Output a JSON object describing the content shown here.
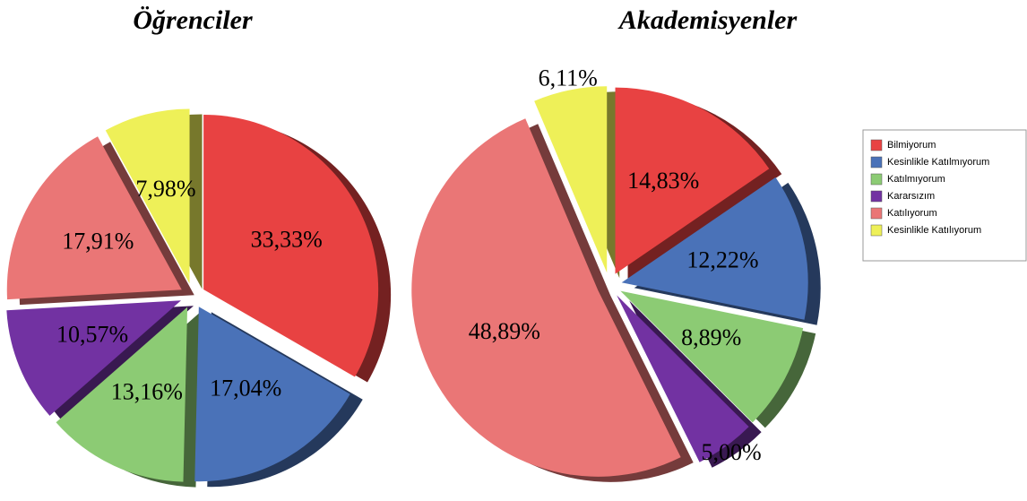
{
  "chart_data": [
    {
      "type": "pie",
      "title": "Öğrenciler",
      "categories": [
        "Bilmiyorum",
        "Kesinlikle Katılmıyorum",
        "Katılmıyorum",
        "Kararsızım",
        "Katılıyorum",
        "Kesinlikle Katılıyorum"
      ],
      "values": [
        33.33,
        17.04,
        13.16,
        10.57,
        17.91,
        7.98
      ],
      "value_labels": [
        "33,33%",
        "17,04%",
        "13,16%",
        "10,57%",
        "17,91%",
        "7,98%"
      ],
      "colors": [
        "#e84242",
        "#4a72b8",
        "#8ccb74",
        "#7232a2",
        "#ea7676",
        "#eef058"
      ]
    },
    {
      "type": "pie",
      "title": "Akademisyenler",
      "categories": [
        "Bilmiyorum",
        "Kesinlikle Katılmıyorum",
        "Katılmıyorum",
        "Kararsızım",
        "Katılıyorum",
        "Kesinlikle Katılıyorum"
      ],
      "values": [
        14.83,
        12.22,
        8.89,
        5.0,
        48.89,
        6.11
      ],
      "value_labels": [
        "14,83%",
        "12,22%",
        "8,89%",
        "5,00%",
        "48,89%",
        "6,11%"
      ],
      "colors": [
        "#e84242",
        "#4a72b8",
        "#8ccb74",
        "#7232a2",
        "#ea7676",
        "#eef058"
      ]
    }
  ]
}
